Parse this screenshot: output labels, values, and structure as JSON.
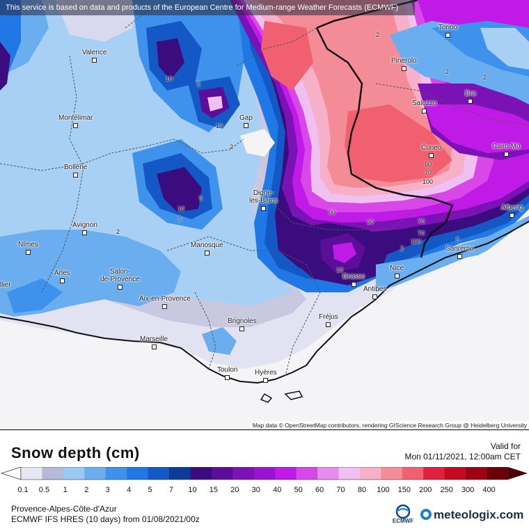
{
  "banner": "This service is based on data and products of the European Centre for Medium-range Weather Forecasts (ECMWF)",
  "attribution": "Map data © OpenStreetMap contributors, rendering GIScience Research Group @ Heidelberg University",
  "cities": [
    {
      "id": "torino",
      "name": "Torino"
    },
    {
      "id": "valence",
      "name": "Valence"
    },
    {
      "id": "pinerolo",
      "name": "Pinerolo"
    },
    {
      "id": "bra",
      "name": "Bra"
    },
    {
      "id": "saluzzo",
      "name": "Saluzzo"
    },
    {
      "id": "montelimar",
      "name": "Montélimar"
    },
    {
      "id": "gap",
      "name": "Gap"
    },
    {
      "id": "cuneo",
      "name": "Cuneo"
    },
    {
      "id": "cairo",
      "name": "Cairo Mo"
    },
    {
      "id": "bollene",
      "name": "Bollène"
    },
    {
      "id": "digne",
      "name": "Digne-\nles-Bains"
    },
    {
      "id": "albenga",
      "name": "Albeng"
    },
    {
      "id": "avignon",
      "name": "Avignon"
    },
    {
      "id": "sanremo",
      "name": "Sanremo"
    },
    {
      "id": "nimes",
      "name": "Nîmes"
    },
    {
      "id": "manosque",
      "name": "Manosque"
    },
    {
      "id": "nice",
      "name": "Nice"
    },
    {
      "id": "arles",
      "name": "Arles"
    },
    {
      "id": "salon",
      "name": "Salon-\nde-Provence"
    },
    {
      "id": "grasse",
      "name": "Grasse"
    },
    {
      "id": "antibes",
      "name": "Antibes"
    },
    {
      "id": "montpellier",
      "name": "llier"
    },
    {
      "id": "aix",
      "name": "Aix-en-Provence"
    },
    {
      "id": "frejus",
      "name": "Fréjus"
    },
    {
      "id": "brignoles",
      "name": "Brignoles"
    },
    {
      "id": "marseille",
      "name": "Marseille"
    },
    {
      "id": "toulon",
      "name": "Toulon"
    },
    {
      "id": "hyeres",
      "name": "Hyères"
    }
  ],
  "contour_labels": [
    "10",
    "5",
    "10",
    "2",
    "2",
    "10",
    "5",
    "2",
    "50",
    "70",
    "100",
    "50",
    "70",
    "30",
    "70",
    "100",
    "2",
    "10",
    "5",
    "2",
    "2",
    "5"
  ],
  "legend": {
    "title": "Snow depth (cm)",
    "valid_label": "Valid for",
    "valid_time": "Mon 01/11/2021, 12:00am CET",
    "scale": [
      {
        "label": "0.1",
        "color": "#e6e6f5"
      },
      {
        "label": "0.5",
        "color": "#b8b8d8"
      },
      {
        "label": "1",
        "color": "#9bc8f4"
      },
      {
        "label": "2",
        "color": "#6aaef0"
      },
      {
        "label": "3",
        "color": "#3f92ec"
      },
      {
        "label": "4",
        "color": "#1f78e6"
      },
      {
        "label": "5",
        "color": "#1358c4"
      },
      {
        "label": "7",
        "color": "#0c3c96"
      },
      {
        "label": "10",
        "color": "#3a0c7e"
      },
      {
        "label": "15",
        "color": "#5a0e9a"
      },
      {
        "label": "20",
        "color": "#7a12b6"
      },
      {
        "label": "30",
        "color": "#9a14d0"
      },
      {
        "label": "40",
        "color": "#c01ae6"
      },
      {
        "label": "50",
        "color": "#d848e8"
      },
      {
        "label": "60",
        "color": "#e68cee"
      },
      {
        "label": "70",
        "color": "#f0c0f2"
      },
      {
        "label": "80",
        "color": "#f6b0c8"
      },
      {
        "label": "100",
        "color": "#f48c98"
      },
      {
        "label": "150",
        "color": "#f06070"
      },
      {
        "label": "200",
        "color": "#e02040"
      },
      {
        "label": "250",
        "color": "#c40a20"
      },
      {
        "label": "300",
        "color": "#9c0414"
      },
      {
        "label": "400",
        "color": "#6a0008"
      }
    ]
  },
  "region": "Provence-Alpes-Côte-d'Azur",
  "model_run": "ECMWF IFS HRES (10 days) from 01/08/2021/00z",
  "logos": {
    "ecmwf": "ECMWF",
    "meteologix": "meteologix.com"
  }
}
